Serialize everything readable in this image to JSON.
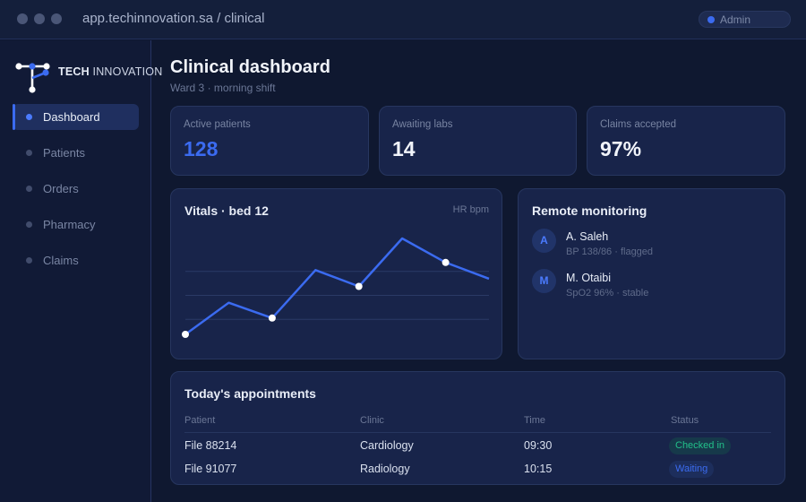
{
  "browser": {
    "url": "app.techinnovation.sa / clinical",
    "user_label": "Admin"
  },
  "brand": {
    "name_bold": "TECH",
    "name_light": "INNOVATION"
  },
  "sidebar": {
    "items": [
      {
        "label": "Dashboard",
        "active": true
      },
      {
        "label": "Patients",
        "active": false
      },
      {
        "label": "Orders",
        "active": false
      },
      {
        "label": "Pharmacy",
        "active": false
      },
      {
        "label": "Claims",
        "active": false
      }
    ]
  },
  "header": {
    "title": "Clinical dashboard",
    "subtitle": "Ward 3 · morning shift"
  },
  "stats": [
    {
      "label": "Active patients",
      "value": "128"
    },
    {
      "label": "Awaiting labs",
      "value": "14"
    },
    {
      "label": "Claims accepted",
      "value": "97%"
    }
  ],
  "vitals": {
    "title": "Vitals · bed 12",
    "unit_label": "HR bpm"
  },
  "chart_data": {
    "type": "line",
    "title": "Vitals · bed 12",
    "ylabel": "HR bpm",
    "xlabel": "",
    "x": [
      1,
      2,
      3,
      4,
      5,
      6,
      7,
      8
    ],
    "series": [
      {
        "values": [
          0.0,
          0.33,
          0.17,
          0.67,
          0.5,
          1.0,
          0.75,
          0.58
        ]
      }
    ],
    "markers_at": [
      0,
      2,
      4,
      6
    ],
    "ylim": [
      0,
      1
    ],
    "grid": true,
    "color": "#3b6bf0"
  },
  "remote": {
    "title": "Remote monitoring",
    "patients": [
      {
        "initial": "A",
        "name": "A. Saleh",
        "status": "BP 138/86 · flagged"
      },
      {
        "initial": "M",
        "name": "M. Otaibi",
        "status": "SpO2 96% · stable"
      }
    ]
  },
  "appointments": {
    "title": "Today's appointments",
    "columns": [
      "Patient",
      "Clinic",
      "Time",
      "Status"
    ],
    "rows": [
      {
        "patient": "File 88214",
        "clinic": "Cardiology",
        "time": "09:30",
        "status": "Checked in",
        "status_color": "#22c08a"
      },
      {
        "patient": "File 91077",
        "clinic": "Radiology",
        "time": "10:15",
        "status": "Waiting",
        "status_color": "#3b6bf0"
      }
    ]
  },
  "colors": {
    "accent": "#3b6bf0",
    "success": "#22c08a",
    "background": "#0f1830",
    "card": "#18244a"
  }
}
